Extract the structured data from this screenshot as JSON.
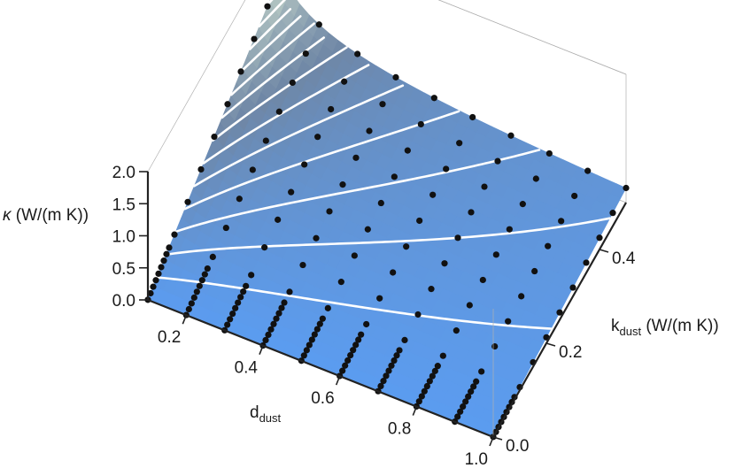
{
  "chart_data": {
    "type": "surface3d",
    "z_axis": {
      "label_prefix": "κ",
      "label_rest": " (W/(m K))",
      "ticks": [
        "0.0",
        "0.5",
        "1.0",
        "1.5",
        "2.0"
      ],
      "range": [
        0,
        2
      ]
    },
    "x_axis": {
      "label_main": "d",
      "label_sub": "dust",
      "ticks": [
        "0.2",
        "0.4",
        "0.6",
        "0.8",
        "1.0"
      ],
      "range": [
        0.1,
        1.0
      ]
    },
    "y_axis": {
      "label_main": "k",
      "label_sub": "dust",
      "label_rest": " (W/(m K))",
      "ticks": [
        "0.0",
        "0.2",
        "0.4"
      ],
      "range": [
        0.0,
        0.5
      ]
    },
    "d_values": [
      0.1,
      0.2,
      0.3,
      0.4,
      0.5,
      0.6,
      0.7,
      0.8,
      0.9,
      1.0
    ],
    "k_values": [
      0.0,
      0.1,
      0.2,
      0.3,
      0.4,
      0.5
    ],
    "k_value_expected": "surface values in W/(m K), rows indexed by k_values, columns by d_values",
    "z_grid": [
      [
        0.02,
        0.01,
        0.008,
        0.006,
        0.005,
        0.004,
        0.003,
        0.003,
        0.002,
        0.002
      ],
      [
        0.45,
        0.35,
        0.28,
        0.23,
        0.19,
        0.16,
        0.14,
        0.12,
        0.11,
        0.1
      ],
      [
        0.85,
        0.62,
        0.48,
        0.39,
        0.33,
        0.28,
        0.25,
        0.22,
        0.2,
        0.19
      ],
      [
        1.25,
        0.88,
        0.67,
        0.54,
        0.46,
        0.4,
        0.35,
        0.32,
        0.29,
        0.28
      ],
      [
        1.6,
        1.12,
        0.85,
        0.69,
        0.58,
        0.51,
        0.45,
        0.41,
        0.38,
        0.36
      ],
      [
        2.0,
        1.36,
        1.02,
        0.83,
        0.7,
        0.61,
        0.55,
        0.5,
        0.47,
        0.45
      ]
    ],
    "contour_levels": [
      0.1,
      0.2,
      0.3,
      0.4,
      0.5,
      0.6,
      0.7,
      0.8,
      0.9,
      1.0,
      1.1,
      1.2,
      1.3,
      1.4,
      1.5,
      1.6,
      1.7,
      1.8
    ],
    "colors": {
      "low": "#5b9cf0",
      "mid": "#6f87a6",
      "high": "#c2d3c8",
      "peak": "#eecfd6",
      "contour": "#ffffff",
      "points": "#111111",
      "box": "#b0b0b0",
      "axis": "#222222"
    }
  }
}
